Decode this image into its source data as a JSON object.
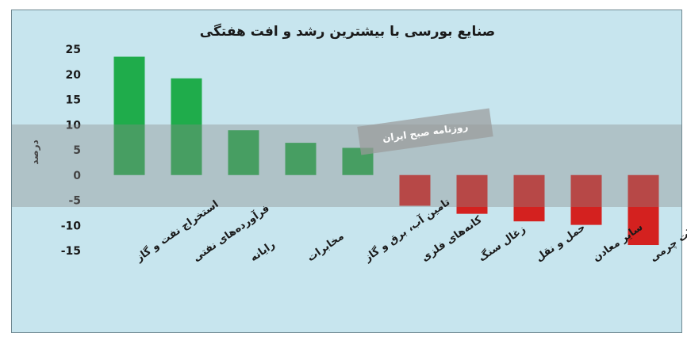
{
  "chart_data": {
    "type": "bar",
    "title": "صنایع بورسی با بیشترین رشد و افت هفتگی",
    "ylabel": "درصد",
    "xlabel": "",
    "ylim": [
      -15,
      25
    ],
    "yticks": [
      25,
      20,
      15,
      10,
      5,
      0,
      -5,
      -10,
      -15
    ],
    "ytick_labels": [
      "25",
      "20",
      "15",
      "10",
      "5",
      "0",
      "-5",
      "-10",
      "-15"
    ],
    "categories": [
      "استخراج نفت و گاز",
      "فرآورده‌های نفتی",
      "رایانه",
      "مخابرات",
      "تامین آب، برق و گاز",
      "کانه‌های فلزی",
      "زغال سنگ",
      "حمل و نقل",
      "سایر معادن",
      "محصولات چرمی"
    ],
    "values": [
      23.5,
      19.2,
      8.9,
      6.4,
      5.4,
      -6.1,
      -7.7,
      -9.2,
      -9.9,
      -13.9
    ],
    "colors": {
      "positive": "#1fac4b",
      "negative": "#d4211f",
      "background": "#c7e5ee"
    },
    "grid": false,
    "legend": "none"
  },
  "watermark": {
    "label": "روزنامه صبح ایران"
  }
}
